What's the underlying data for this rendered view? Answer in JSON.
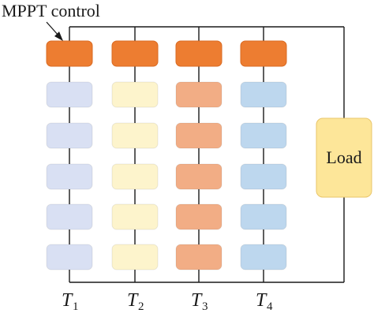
{
  "title": "MPPT control",
  "load_label": "Load",
  "strings": [
    {
      "label": "T",
      "subscript": "1",
      "mppt_color": "#ed7d31",
      "panel_color": "#d9e0f3"
    },
    {
      "label": "T",
      "subscript": "2",
      "mppt_color": "#ed7d31",
      "panel_color": "#fdf4cc"
    },
    {
      "label": "T",
      "subscript": "3",
      "mppt_color": "#ed7d31",
      "panel_color": "#f2ad85"
    },
    {
      "label": "T",
      "subscript": "4",
      "mppt_color": "#ed7d31",
      "panel_color": "#bdd7ee"
    }
  ],
  "panels_per_string": 5,
  "load_color": "#fde699",
  "wire_color": "#1a1a1a"
}
